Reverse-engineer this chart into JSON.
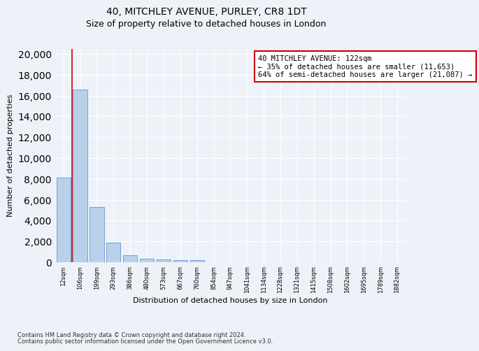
{
  "title": "40, MITCHLEY AVENUE, PURLEY, CR8 1DT",
  "subtitle": "Size of property relative to detached houses in London",
  "xlabel": "Distribution of detached houses by size in London",
  "ylabel": "Number of detached properties",
  "categories": [
    "12sqm",
    "106sqm",
    "199sqm",
    "293sqm",
    "386sqm",
    "480sqm",
    "573sqm",
    "667sqm",
    "760sqm",
    "854sqm",
    "947sqm",
    "1041sqm",
    "1134sqm",
    "1228sqm",
    "1321sqm",
    "1415sqm",
    "1508sqm",
    "1602sqm",
    "1695sqm",
    "1789sqm",
    "1882sqm"
  ],
  "bar_values": [
    8100,
    16600,
    5300,
    1850,
    700,
    360,
    280,
    220,
    220,
    0,
    0,
    0,
    0,
    0,
    0,
    0,
    0,
    0,
    0,
    0,
    0
  ],
  "bar_color": "#b8d0ea",
  "bar_edge_color": "#6699cc",
  "property_line_color": "#cc0000",
  "property_line_x": 0.5,
  "annotation_text": "40 MITCHLEY AVENUE: 122sqm\n← 35% of detached houses are smaller (11,653)\n64% of semi-detached houses are larger (21,087) →",
  "annotation_box_color": "#ffffff",
  "annotation_box_edgecolor": "#cc0000",
  "ylim": [
    0,
    20500
  ],
  "yticks": [
    0,
    2000,
    4000,
    6000,
    8000,
    10000,
    12000,
    14000,
    16000,
    18000,
    20000
  ],
  "footer_line1": "Contains HM Land Registry data © Crown copyright and database right 2024.",
  "footer_line2": "Contains public sector information licensed under the Open Government Licence v3.0.",
  "bg_color": "#eef2f8",
  "plot_bg_color": "#eef2f8",
  "grid_color": "#ffffff",
  "title_fontsize": 10,
  "subtitle_fontsize": 9
}
